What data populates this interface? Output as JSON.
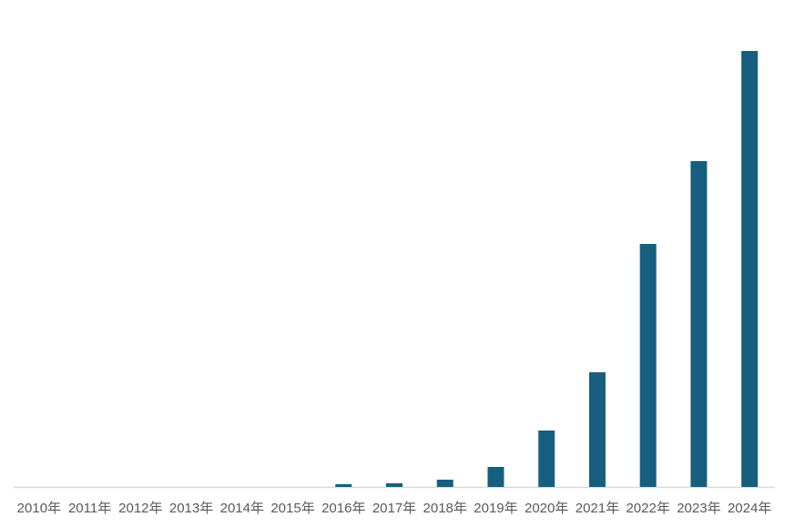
{
  "chart_data": {
    "type": "bar",
    "categories": [
      "2010年",
      "2011年",
      "2012年",
      "2013年",
      "2014年",
      "2015年",
      "2016年",
      "2017年",
      "2018年",
      "2019年",
      "2020年",
      "2021年",
      "2022年",
      "2023年",
      "2024年"
    ],
    "values": [
      0,
      0,
      0,
      0,
      0,
      0,
      3,
      4,
      8,
      22,
      62,
      126,
      267,
      358,
      479
    ],
    "color": "#175e7f",
    "ylim": [
      0,
      500
    ]
  }
}
